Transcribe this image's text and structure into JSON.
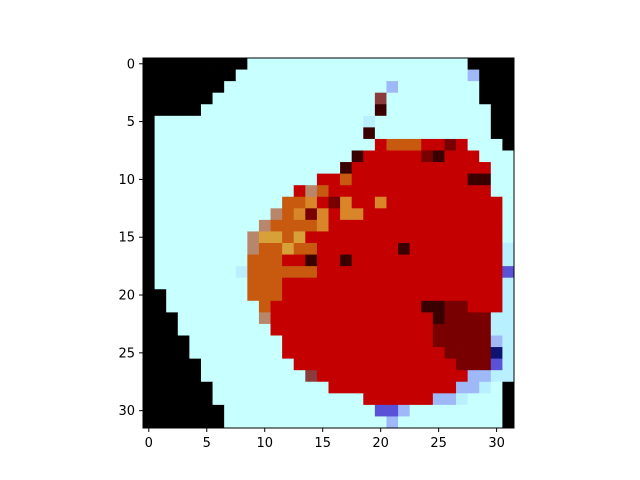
{
  "chart_data": {
    "type": "heatmap",
    "title": "",
    "xlabel": "",
    "ylabel": "",
    "grid": false,
    "xlim": [
      -0.5,
      31.5
    ],
    "ylim": [
      31.5,
      -0.5
    ],
    "x_ticks": [
      0,
      5,
      10,
      15,
      20,
      25,
      30
    ],
    "y_ticks": [
      0,
      5,
      10,
      15,
      20,
      25,
      30
    ],
    "image_rows": 32,
    "image_cols": 32,
    "palette": {
      "K": "#000000",
      "W": "#c8ffff",
      "L": "#b8f0ff",
      "P": "#9fb8f8",
      "V": "#5a52d6",
      "N": "#0d1470",
      "R": "#c40000",
      "r": "#a80000",
      "D": "#780000",
      "d": "#3a0000",
      "O": "#c85a10",
      "o": "#d9862a",
      "Y": "#d8a038",
      "T": "#b8866a",
      "M": "#8a3c3c"
    },
    "pixels": [
      "KKKKKKKKKWWWWWWWWWWWWWWWWWWWKKKK",
      "KKKKKKKKWWWWWWWWWWWWWWWWWWWWPKKK",
      "KKKKKKKWWWWWWWWWWWWWWPWWWWWWWKKK",
      "KKKKKKWWWWWWWWWWWWWWMWWWWWWWWKKK",
      "KKKKKWWWWWWWWWWWWWWWdWWWWWWWWWKK",
      "KWWWWWWWWWWWWWWWWWWLWWWWWWWWWWKK",
      "KWWWWWWWWWWWWWWWWWWdWWWWWWWWWWKK",
      "KWWWWWWWWWWWWWWWWWWWROOORRDRWWWK",
      "KWWWWWWWWWWWWWWWWWdRRRRRDdRRRWWW",
      "KWWWWWWWWWWWWWWWWdRRRRRRRRRRRRWW",
      "KWWWWWWWWWWWWWWRRORRRRRRRRRRddWW",
      "KWWWWWWWWWWWWRTORRRRRRRRRRRRRRWW",
      "KWWWWWWWWWWWOOoRDoRRoRRRRRRRRRRW",
      "KWWWWWWWWWWTOoDoRooRRRRRRRRRRRRW",
      "KWWWWWWWWWTOOOOoRRRRRRRRRRRRRRRW",
      "KWWWWWWWWTYYOYRRRRRRRRRRRRRRRRRW",
      "KWWWWWWWWTOOYOORRRRRRRdRRRRRRRRL",
      "KWWWWWWWWOOORRdRRdRRRRRRRRRRRRRL",
      "KWWWWWWWLOOOOOORRRRRRRRRRRRRRRRV",
      "KWWWWWWWWOOORRRRRRRRRRRRRRRRRRRL",
      "KKWWWWWWWOOORRRRRRRRRRRRRRRRRRRL",
      "KKWWWWWWWWORRRRRRRRRRRRRddDDRRRL",
      "KKKWWWWWWWTRRRRRRRRRRRRRRdDDDDLL",
      "KKKWWWWWWWWRRRRRRRRRRRRRRDDDDDLL",
      "KKKKWWWWWWWWRRRRRRRRRRRRRDDDDDPL",
      "KKKKWWWWWWWWRRRRRRRRRRRRRRDDDDNL",
      "KKKKKWWWWWWWWRRRRRRRRRRRRRRDDDVL",
      "KKKKKWWWWWWWWWMRRRRRRRRRRRRRPPLL",
      "KKKKKKWWWWWWWWWWRRRRRRRRRRRPPLWK",
      "KKKKKKWWWWWWWWWWWWWRRRRRRPPLWWWK",
      "KKKKKKKWWWWWWWWWWWWWVVPWWWWWWWWK",
      "KKKKKKKWWWWWWWWWWWWWWPWWWWWWWWWK"
    ]
  }
}
